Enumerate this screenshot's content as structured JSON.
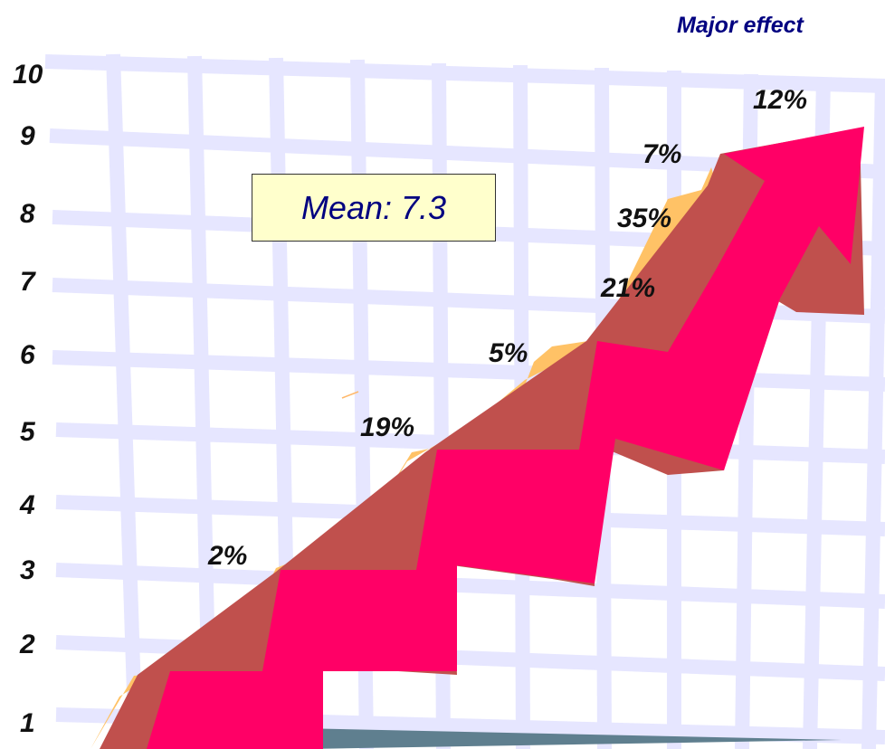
{
  "chart_data": {
    "type": "bar",
    "title": "Major effect",
    "xlabel": "",
    "ylabel": "",
    "ylim": [
      1,
      10
    ],
    "yticks": [
      "1",
      "2",
      "3",
      "4",
      "5",
      "6",
      "7",
      "8",
      "9",
      "10"
    ],
    "categories": [
      "1",
      "2",
      "3",
      "4",
      "5",
      "6",
      "7",
      "8",
      "9",
      "10"
    ],
    "values": [
      null,
      2,
      null,
      19,
      null,
      5,
      21,
      35,
      7,
      12
    ],
    "value_labels": [
      "",
      "2%",
      "",
      "19%",
      "",
      "5%",
      "21%",
      "35%",
      "7%",
      "12%"
    ],
    "annotation": "Mean: 7.3",
    "grid": true,
    "colors": {
      "arrow_front": "#ff0066",
      "arrow_shadow": "#c0504d",
      "arrow_highlight": "#ffc266",
      "grid": "#e6e6ff",
      "floor": "#5f7f8f",
      "title": "#000080"
    }
  }
}
